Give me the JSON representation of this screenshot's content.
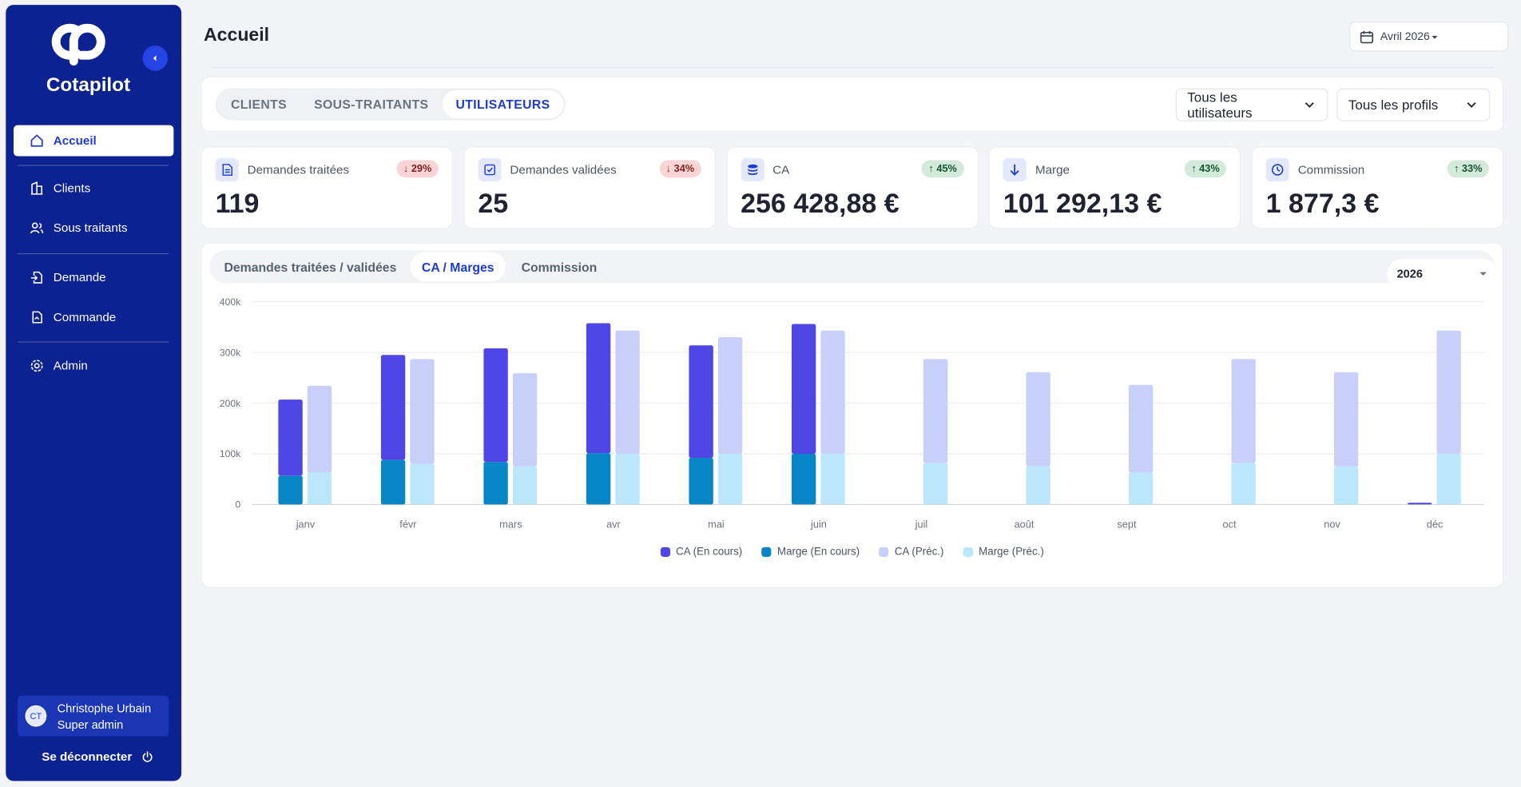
{
  "sidebar": {
    "brand": "Cotapilot",
    "nav": [
      "Accueil",
      "Clients",
      "Sous traitants",
      "Demande",
      "Commande",
      "Admin"
    ],
    "user": {
      "initials": "CT",
      "name": "Christophe Urbain",
      "role": "Super admin"
    },
    "logout": "Se déconnecter"
  },
  "header": {
    "title": "Accueil",
    "period": "Avril 2026"
  },
  "scope_tabs": {
    "items": [
      "CLIENTS",
      "SOUS-TRAITANTS",
      "UTILISATEURS"
    ],
    "filters": [
      "Tous les utilisateurs",
      "Tous les profils"
    ]
  },
  "kpis": [
    {
      "label": "Demandes traitées",
      "change": "↓ 29%",
      "value": "119",
      "badge_color": "#fbd5d5",
      "badge_text_color": "#7f1d1d"
    },
    {
      "label": "Demandes validées",
      "change": "↓ 34%",
      "value": "25",
      "badge_color": "#fbd5d5",
      "badge_text_color": "#7f1d1d"
    },
    {
      "label": "CA",
      "change": "↑ 45%",
      "value": "256 428,88 €",
      "badge_color": "#d3eadb",
      "badge_text_color": "#14532d"
    },
    {
      "label": "Marge",
      "change": "↑ 43%",
      "value": "101 292,13 €",
      "badge_color": "#d3eadb",
      "badge_text_color": "#14532d"
    },
    {
      "label": "Commission",
      "change": "↑ 33%",
      "value": "1 877,3 €",
      "badge_color": "#d3eadb",
      "badge_text_color": "#14532d"
    }
  ],
  "chart_panel": {
    "tabs": [
      "Demandes traitées / validées",
      "CA / Marges",
      "Commission"
    ],
    "year": "2026"
  },
  "chart_data": {
    "type": "stacked-bar",
    "categories": [
      "janv",
      "févr",
      "mars",
      "avr",
      "mai",
      "juin",
      "juil",
      "août",
      "sept",
      "oct",
      "nov",
      "déc"
    ],
    "series": [
      {
        "name": "CA (En cours)",
        "color": "#4f46e5",
        "stack": 0,
        "values": [
          150000,
          207000,
          224000,
          256428.88,
          222000,
          256000,
          0,
          0,
          0,
          0,
          0,
          3000
        ]
      },
      {
        "name": "Marge (En cours)",
        "color": "#0686c6",
        "stack": 0,
        "values": [
          57000,
          88000,
          84000,
          101292.13,
          92000,
          100000,
          0,
          0,
          0,
          0,
          0,
          500
        ]
      },
      {
        "name": "CA (Préc.)",
        "color": "#c8d0fa",
        "stack": 1,
        "values": [
          171000,
          207000,
          184000,
          243000,
          230000,
          243000,
          205000,
          186000,
          173000,
          205000,
          186000,
          243000
        ]
      },
      {
        "name": "Marge (Préc.)",
        "color": "#bce6fb",
        "stack": 1,
        "values": [
          63000,
          80000,
          75000,
          100000,
          100000,
          100000,
          82000,
          75000,
          63000,
          82000,
          75000,
          100000
        ]
      }
    ],
    "ylim": [
      0,
      400000
    ],
    "yticks": [
      0,
      {
        "value": 100000,
        "label": "100k"
      },
      {
        "value": 200000,
        "label": "200k"
      },
      {
        "value": 300000,
        "label": "300k"
      },
      {
        "value": 400000,
        "label": "400k"
      }
    ],
    "grid": true
  }
}
